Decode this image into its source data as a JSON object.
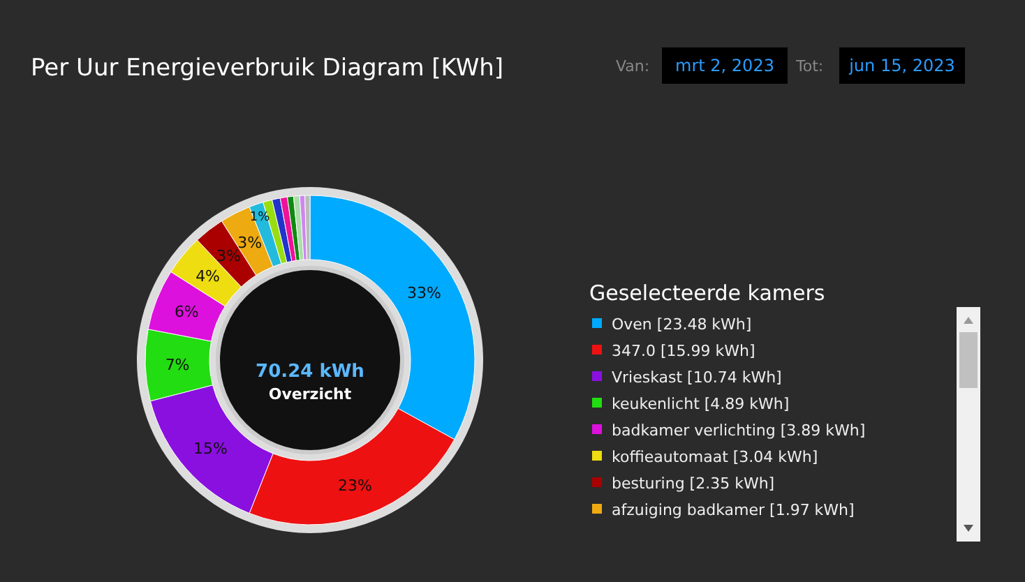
{
  "chart_data": {
    "type": "donut",
    "title": "Per Uur Energieverbruik Diagram [KWh]",
    "legend_title": "Geselecteerde kamers",
    "legend": "right",
    "categories": [
      "Oven [23.48 kWh]",
      "347.0 [15.99 kWh]",
      "Vrieskast [10.74 kWh]",
      "keukenlicht [4.89 kWh]",
      "badkamer verlichting [3.89 kWh]",
      "koffieautomaat [3.04 kWh]",
      "besturing [2.35 kWh]",
      "afzuiging badkamer [1.97 kWh]",
      null,
      null,
      null,
      null,
      null,
      null,
      null,
      null
    ],
    "values": [
      33,
      23,
      15,
      7,
      6,
      4,
      3,
      3,
      1.4,
      0.9,
      0.8,
      0.7,
      0.6,
      0.6,
      0.5,
      0.5
    ],
    "colors": [
      "#00aaff",
      "#ee1111",
      "#8a10e0",
      "#22dd11",
      "#dd11dd",
      "#eedd11",
      "#aa0000",
      "#eeaa11",
      "#22bbdd",
      "#99dd11",
      "#2233cc",
      "#ee1199",
      "#118811",
      "#aaddaa",
      "#cc88ee",
      "#bbbbbb"
    ],
    "value_labels": [
      "33%",
      "23%",
      "15%",
      "7%",
      "6%",
      "4%",
      "3%",
      "3%",
      "1%",
      null,
      null,
      null,
      null,
      null,
      null,
      null
    ],
    "annotations": [
      "70.24 kWh",
      "Overzicht",
      "Van:",
      "mrt 2, 2023",
      "Tot:",
      "jun 15, 2023"
    ]
  }
}
